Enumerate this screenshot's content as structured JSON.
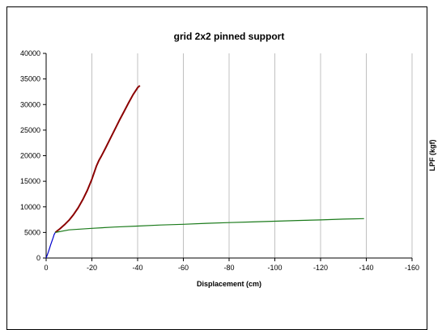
{
  "chart_data": {
    "type": "line",
    "title": "grid 2x2 pinned support",
    "xlabel": "Displacement (cm)",
    "ylabel": "LPF (kgf)",
    "xlim": [
      0,
      -160
    ],
    "ylim": [
      0,
      40000
    ],
    "x_ticks": [
      0,
      -20,
      -40,
      -60,
      -80,
      -100,
      -120,
      -140,
      -160
    ],
    "y_ticks": [
      0,
      5000,
      10000,
      15000,
      20000,
      25000,
      30000,
      35000,
      40000
    ],
    "grid": "vertical",
    "series": [
      {
        "color": "#0000cc",
        "points": [
          [
            0,
            0
          ],
          [
            -1,
            1200
          ],
          [
            -2,
            2600
          ],
          [
            -3,
            3900
          ],
          [
            -3.5,
            4600
          ],
          [
            -4,
            5000
          ]
        ]
      },
      {
        "color": "#8b0000",
        "points": [
          [
            -4,
            5000
          ],
          [
            -6,
            5700
          ],
          [
            -8,
            6500
          ],
          [
            -10,
            7400
          ],
          [
            -12,
            8500
          ],
          [
            -14,
            9800
          ],
          [
            -16,
            11400
          ],
          [
            -18,
            13200
          ],
          [
            -20,
            15400
          ],
          [
            -22,
            18000
          ],
          [
            -23,
            19000
          ],
          [
            -24,
            19800
          ],
          [
            -26,
            21500
          ],
          [
            -28,
            23300
          ],
          [
            -30,
            25100
          ],
          [
            -32,
            26900
          ],
          [
            -34,
            28600
          ],
          [
            -36,
            30300
          ],
          [
            -38,
            31900
          ],
          [
            -40,
            33300
          ],
          [
            -41,
            33700
          ]
        ]
      },
      {
        "color": "#1a7a1a",
        "points": [
          [
            -4,
            5000
          ],
          [
            -10,
            5500
          ],
          [
            -20,
            5800
          ],
          [
            -30,
            6050
          ],
          [
            -40,
            6250
          ],
          [
            -50,
            6450
          ],
          [
            -60,
            6600
          ],
          [
            -70,
            6780
          ],
          [
            -80,
            6920
          ],
          [
            -90,
            7050
          ],
          [
            -100,
            7200
          ],
          [
            -110,
            7330
          ],
          [
            -120,
            7450
          ],
          [
            -130,
            7600
          ],
          [
            -139,
            7700
          ]
        ]
      }
    ]
  }
}
